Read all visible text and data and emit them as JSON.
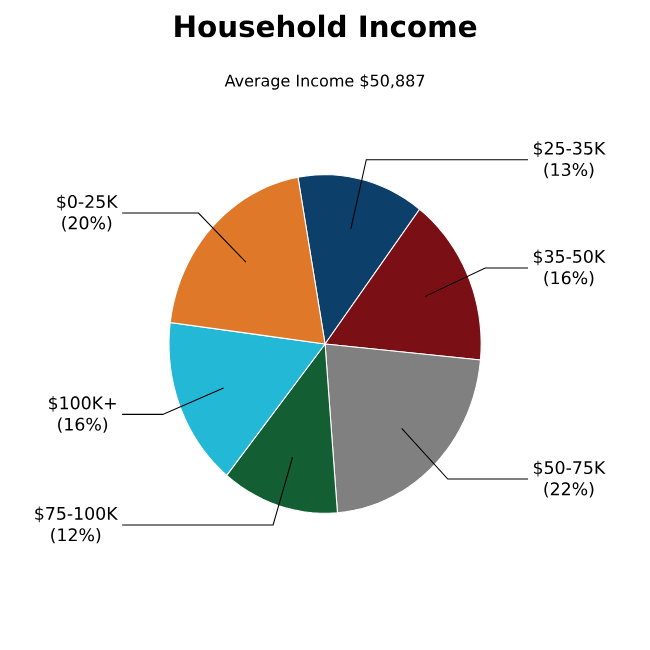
{
  "chart_data": {
    "type": "pie",
    "title": "Household Income",
    "subtitle": "Average Income  $50,887",
    "categories": [
      "$25-35K",
      "$35-50K",
      "$50-75K",
      "$75-100K",
      "$100K+",
      "$0-25K"
    ],
    "values": [
      13,
      16,
      22,
      12,
      16,
      20
    ],
    "value_labels": [
      "(13%)",
      "(16%)",
      "(22%)",
      "(12%)",
      "(16%)",
      "(20%)"
    ],
    "colors": [
      "#0d3f6b",
      "#7a1015",
      "#808080",
      "#145e33",
      "#22b8d6",
      "#e0782a"
    ]
  }
}
